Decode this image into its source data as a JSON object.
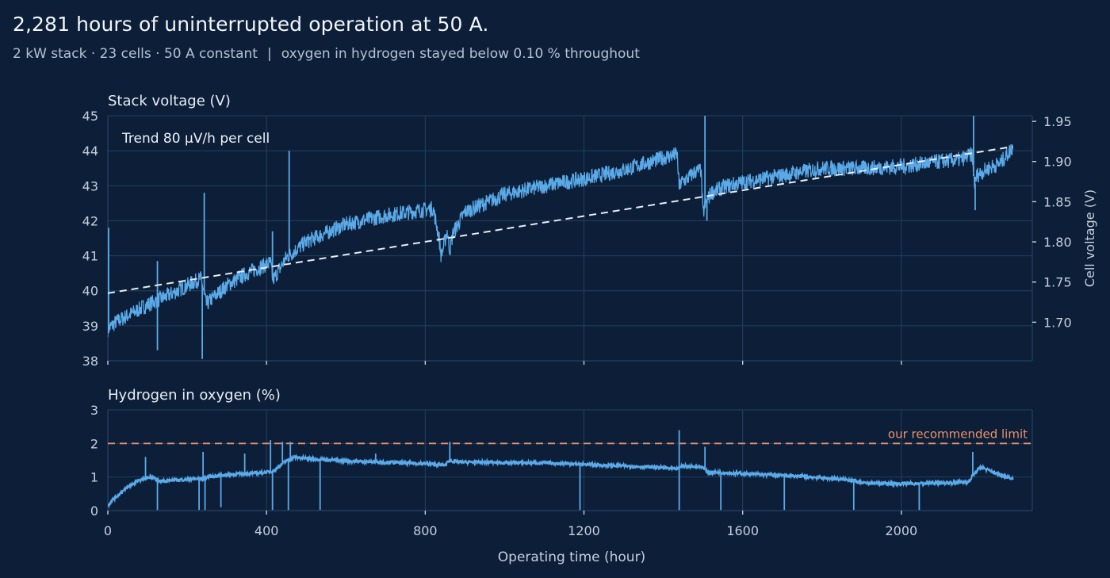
{
  "header": {
    "title": "2,281 hours of uninterrupted operation at 50 A.",
    "subtitle_part1": "2 kW stack · 23 cells · 50 A constant",
    "subtitle_sep": "|",
    "subtitle_part2": "oxygen in hydrogen stayed below 0.10 % throughout"
  },
  "colors": {
    "background": "#0d1f38",
    "series": "#5aa9e8",
    "trend": "#e6ecf2",
    "limit": "#e8926c",
    "grid": "#22405e",
    "axis_text": "#c3cfdc"
  },
  "chart_data": [
    {
      "type": "line",
      "title": "Stack voltage (V)",
      "ylabel": "Stack voltage (V)",
      "ylim": [
        38,
        45
      ],
      "yticks": [
        "38",
        "39",
        "40",
        "41",
        "42",
        "43",
        "44",
        "45"
      ],
      "y2label": "Cell voltage (V)",
      "y2lim": [
        1.652,
        1.957
      ],
      "y2ticks": [
        "1.70",
        "1.75",
        "1.80",
        "1.85",
        "1.90",
        "1.95"
      ],
      "xlim": [
        0,
        2330
      ],
      "grid": true,
      "annotation": "Trend  80 μV/h per cell",
      "trend": {
        "x": [
          0,
          2281
        ],
        "y": [
          39.93,
          44.12
        ]
      },
      "series": [
        {
          "x": [
            0,
            20,
            60,
            100,
            150,
            200,
            235,
            248,
            260,
            300,
            350,
            410,
            416,
            450,
            500,
            600,
            700,
            820,
            835,
            840,
            845,
            855,
            862,
            870,
            900,
            1000,
            1100,
            1200,
            1300,
            1400,
            1435,
            1440,
            1445,
            1460,
            1480,
            1495,
            1500,
            1506,
            1520,
            1560,
            1600,
            1700,
            1800,
            1900,
            2000,
            2100,
            2150,
            2178,
            2185,
            2190,
            2220,
            2250,
            2281
          ],
          "y": [
            38.9,
            39.1,
            39.35,
            39.6,
            39.85,
            40.15,
            40.35,
            39.6,
            39.75,
            40.15,
            40.5,
            40.8,
            40.3,
            40.95,
            41.4,
            41.9,
            42.15,
            42.35,
            41.5,
            41.0,
            41.2,
            41.7,
            41.15,
            41.65,
            42.25,
            42.75,
            43.0,
            43.2,
            43.45,
            43.8,
            43.9,
            42.95,
            43.1,
            43.2,
            43.4,
            43.45,
            42.2,
            42.45,
            42.8,
            43.0,
            43.1,
            43.3,
            43.5,
            43.5,
            43.55,
            43.7,
            43.75,
            43.9,
            43.0,
            43.3,
            43.5,
            43.65,
            44.1
          ]
        }
      ],
      "spikes": [
        {
          "x": 2,
          "y": 41.8
        },
        {
          "x": 125,
          "y": 40.85
        },
        {
          "x": 125,
          "y": 38.3
        },
        {
          "x": 238,
          "y": 38.05
        },
        {
          "x": 243,
          "y": 42.8
        },
        {
          "x": 415,
          "y": 41.7
        },
        {
          "x": 457,
          "y": 44.0
        },
        {
          "x": 1505,
          "y": 45.0
        },
        {
          "x": 1510,
          "y": 42.0
        },
        {
          "x": 2182,
          "y": 45.0
        },
        {
          "x": 2186,
          "y": 42.3
        }
      ]
    },
    {
      "type": "line",
      "title": "Hydrogen in oxygen (%)",
      "ylabel": "Hydrogen in oxygen (%)",
      "ylim": [
        0,
        3
      ],
      "yticks": [
        "0",
        "1",
        "2",
        "3"
      ],
      "xlim": [
        0,
        2330
      ],
      "xticks": [
        "0",
        "400",
        "800",
        "1200",
        "1600",
        "2000"
      ],
      "xlabel": "Operating time (hour)",
      "grid": true,
      "limit": {
        "y": 2.0,
        "label": "our recommended limit"
      },
      "series": [
        {
          "x": [
            0,
            10,
            30,
            50,
            70,
            90,
            110,
            130,
            200,
            240,
            250,
            300,
            400,
            420,
            445,
            455,
            470,
            500,
            600,
            700,
            800,
            850,
            860,
            880,
            1000,
            1100,
            1200,
            1300,
            1400,
            1435,
            1445,
            1500,
            1510,
            1550,
            1600,
            1700,
            1800,
            1880,
            1900,
            2000,
            2100,
            2170,
            2180,
            2200,
            2240,
            2281
          ],
          "y": [
            0.15,
            0.3,
            0.5,
            0.7,
            0.85,
            0.95,
            1.0,
            0.88,
            0.93,
            0.96,
            1.0,
            1.07,
            1.14,
            1.2,
            1.45,
            1.5,
            1.6,
            1.55,
            1.48,
            1.44,
            1.4,
            1.35,
            1.5,
            1.45,
            1.43,
            1.42,
            1.38,
            1.33,
            1.28,
            1.23,
            1.33,
            1.3,
            1.15,
            1.13,
            1.1,
            1.05,
            0.98,
            0.9,
            0.82,
            0.8,
            0.82,
            0.85,
            1.05,
            1.3,
            1.1,
            0.95
          ]
        }
      ],
      "spikes_up": [
        {
          "x": 95,
          "y": 1.6
        },
        {
          "x": 240,
          "y": 1.75
        },
        {
          "x": 345,
          "y": 1.7
        },
        {
          "x": 410,
          "y": 2.1
        },
        {
          "x": 440,
          "y": 2.05
        },
        {
          "x": 460,
          "y": 2.05
        },
        {
          "x": 675,
          "y": 1.7
        },
        {
          "x": 862,
          "y": 2.05
        },
        {
          "x": 1440,
          "y": 2.4
        },
        {
          "x": 1505,
          "y": 1.9
        },
        {
          "x": 2180,
          "y": 1.75
        }
      ],
      "spikes_down": [
        {
          "x": 125,
          "y": 0.02
        },
        {
          "x": 230,
          "y": 0.02
        },
        {
          "x": 245,
          "y": 0.02
        },
        {
          "x": 285,
          "y": 0.1
        },
        {
          "x": 415,
          "y": 0.02
        },
        {
          "x": 455,
          "y": 0.02
        },
        {
          "x": 535,
          "y": 0.02
        },
        {
          "x": 1190,
          "y": 0.02
        },
        {
          "x": 1440,
          "y": 0.02
        },
        {
          "x": 1545,
          "y": 0.02
        },
        {
          "x": 1705,
          "y": 0.02
        },
        {
          "x": 1880,
          "y": 0.02
        },
        {
          "x": 2045,
          "y": 0.02
        }
      ]
    }
  ]
}
